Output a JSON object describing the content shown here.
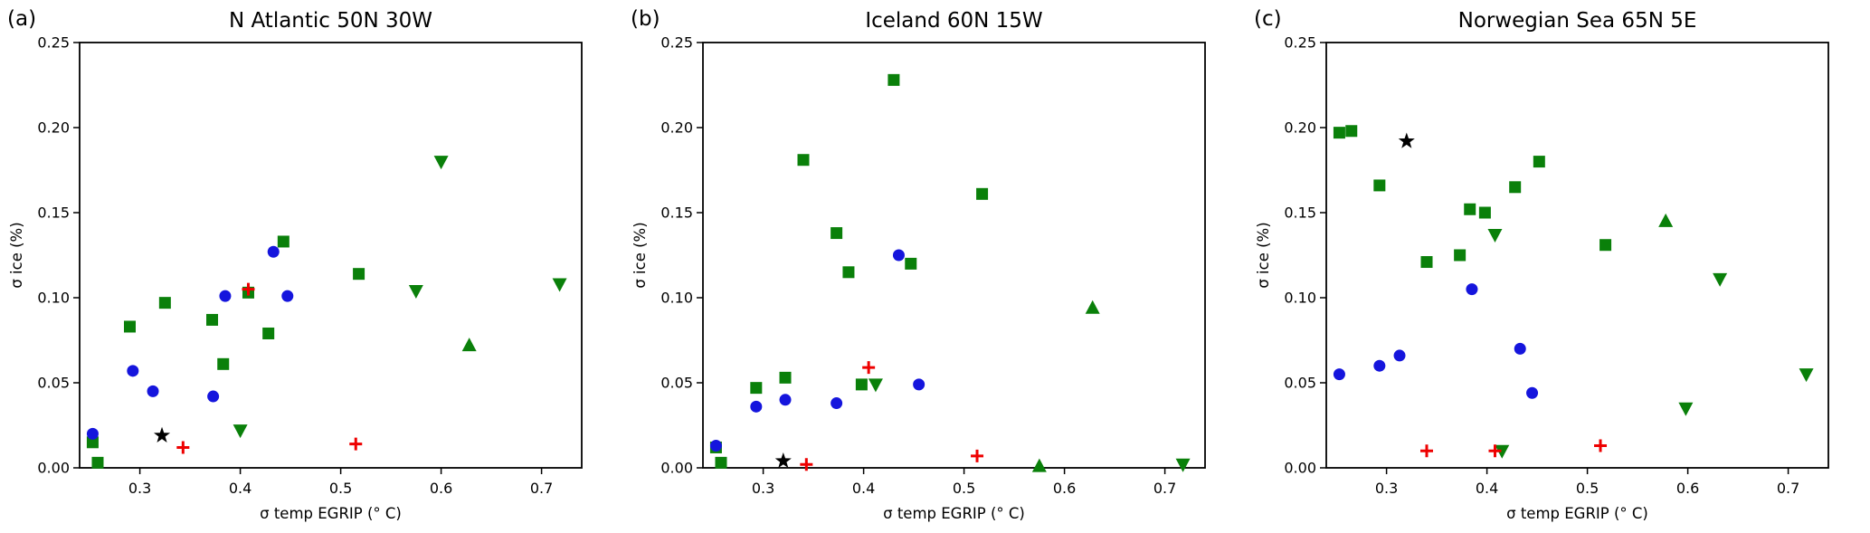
{
  "figure": {
    "background": "#ffffff"
  },
  "chart_data": [
    {
      "type": "scatter",
      "panel_label": "(a)",
      "title": "N Atlantic 50N 30W",
      "xlabel": "σ temp EGRIP (° C)",
      "ylabel": "σ ice (%)",
      "xlim": [
        0.24,
        0.74
      ],
      "ylim": [
        0,
        0.25
      ],
      "xticks": [
        0.3,
        0.4,
        0.5,
        0.6,
        0.7
      ],
      "xtick_labels": [
        "0.3",
        "0.4",
        "0.5",
        "0.6",
        "0.7"
      ],
      "yticks": [
        0.0,
        0.05,
        0.1,
        0.15,
        0.2,
        0.25
      ],
      "ytick_labels": [
        "0.00",
        "0.05",
        "0.10",
        "0.15",
        "0.20",
        "0.25"
      ],
      "grid": false,
      "legend": "none",
      "series": [
        {
          "name": "green-squares",
          "marker": "square",
          "color": "#0a800a",
          "points": [
            [
              0.253,
              0.015
            ],
            [
              0.258,
              0.003
            ],
            [
              0.29,
              0.083
            ],
            [
              0.325,
              0.097
            ],
            [
              0.372,
              0.087
            ],
            [
              0.383,
              0.061
            ],
            [
              0.408,
              0.103
            ],
            [
              0.428,
              0.079
            ],
            [
              0.443,
              0.133
            ],
            [
              0.518,
              0.114
            ]
          ]
        },
        {
          "name": "green-triangles-down",
          "marker": "triangle-down",
          "color": "#0a800a",
          "points": [
            [
              0.4,
              0.022
            ],
            [
              0.575,
              0.104
            ],
            [
              0.6,
              0.18
            ],
            [
              0.718,
              0.108
            ]
          ]
        },
        {
          "name": "green-triangles-up",
          "marker": "triangle-up",
          "color": "#0a800a",
          "points": [
            [
              0.628,
              0.072
            ]
          ]
        },
        {
          "name": "blue-circles",
          "marker": "circle",
          "color": "#1515dd",
          "points": [
            [
              0.253,
              0.02
            ],
            [
              0.293,
              0.057
            ],
            [
              0.313,
              0.045
            ],
            [
              0.373,
              0.042
            ],
            [
              0.385,
              0.101
            ],
            [
              0.433,
              0.127
            ],
            [
              0.447,
              0.101
            ]
          ]
        },
        {
          "name": "red-plus",
          "marker": "plus",
          "color": "#ee0000",
          "points": [
            [
              0.343,
              0.012
            ],
            [
              0.408,
              0.105
            ],
            [
              0.515,
              0.014
            ]
          ]
        },
        {
          "name": "black-star",
          "marker": "star",
          "color": "#000000",
          "points": [
            [
              0.322,
              0.019
            ]
          ]
        }
      ]
    },
    {
      "type": "scatter",
      "panel_label": "(b)",
      "title": "Iceland 60N 15W",
      "xlabel": "σ temp EGRIP (° C)",
      "ylabel": "σ ice (%)",
      "xlim": [
        0.24,
        0.74
      ],
      "ylim": [
        0,
        0.25
      ],
      "xticks": [
        0.3,
        0.4,
        0.5,
        0.6,
        0.7
      ],
      "xtick_labels": [
        "0.3",
        "0.4",
        "0.5",
        "0.6",
        "0.7"
      ],
      "yticks": [
        0.0,
        0.05,
        0.1,
        0.15,
        0.2,
        0.25
      ],
      "ytick_labels": [
        "0.00",
        "0.05",
        "0.10",
        "0.15",
        "0.20",
        "0.25"
      ],
      "grid": false,
      "legend": "none",
      "series": [
        {
          "name": "green-squares",
          "marker": "square",
          "color": "#0a800a",
          "points": [
            [
              0.253,
              0.012
            ],
            [
              0.258,
              0.003
            ],
            [
              0.293,
              0.047
            ],
            [
              0.322,
              0.053
            ],
            [
              0.34,
              0.181
            ],
            [
              0.373,
              0.138
            ],
            [
              0.385,
              0.115
            ],
            [
              0.398,
              0.049
            ],
            [
              0.43,
              0.228
            ],
            [
              0.447,
              0.12
            ],
            [
              0.518,
              0.161
            ]
          ]
        },
        {
          "name": "green-triangles-down",
          "marker": "triangle-down",
          "color": "#0a800a",
          "points": [
            [
              0.412,
              0.049
            ],
            [
              0.718,
              0.002
            ]
          ]
        },
        {
          "name": "green-triangles-up",
          "marker": "triangle-up",
          "color": "#0a800a",
          "points": [
            [
              0.575,
              0.001
            ],
            [
              0.628,
              0.094
            ]
          ]
        },
        {
          "name": "blue-circles",
          "marker": "circle",
          "color": "#1515dd",
          "points": [
            [
              0.253,
              0.013
            ],
            [
              0.293,
              0.036
            ],
            [
              0.322,
              0.04
            ],
            [
              0.373,
              0.038
            ],
            [
              0.435,
              0.125
            ],
            [
              0.455,
              0.049
            ]
          ]
        },
        {
          "name": "red-plus",
          "marker": "plus",
          "color": "#ee0000",
          "points": [
            [
              0.343,
              0.002
            ],
            [
              0.405,
              0.059
            ],
            [
              0.513,
              0.007
            ]
          ]
        },
        {
          "name": "black-star",
          "marker": "star",
          "color": "#000000",
          "points": [
            [
              0.32,
              0.004
            ]
          ]
        }
      ]
    },
    {
      "type": "scatter",
      "panel_label": "(c)",
      "title": "Norwegian Sea 65N 5E",
      "xlabel": "σ temp EGRIP (° C)",
      "ylabel": "σ ice (%)",
      "xlim": [
        0.24,
        0.74
      ],
      "ylim": [
        0,
        0.25
      ],
      "xticks": [
        0.3,
        0.4,
        0.5,
        0.6,
        0.7
      ],
      "xtick_labels": [
        "0.3",
        "0.4",
        "0.5",
        "0.6",
        "0.7"
      ],
      "yticks": [
        0.0,
        0.05,
        0.1,
        0.15,
        0.2,
        0.25
      ],
      "ytick_labels": [
        "0.00",
        "0.05",
        "0.10",
        "0.15",
        "0.20",
        "0.25"
      ],
      "grid": false,
      "legend": "none",
      "series": [
        {
          "name": "green-squares",
          "marker": "square",
          "color": "#0a800a",
          "points": [
            [
              0.253,
              0.197
            ],
            [
              0.265,
              0.198
            ],
            [
              0.293,
              0.166
            ],
            [
              0.34,
              0.121
            ],
            [
              0.373,
              0.125
            ],
            [
              0.383,
              0.152
            ],
            [
              0.398,
              0.15
            ],
            [
              0.428,
              0.165
            ],
            [
              0.452,
              0.18
            ],
            [
              0.518,
              0.131
            ]
          ]
        },
        {
          "name": "green-triangles-down",
          "marker": "triangle-down",
          "color": "#0a800a",
          "points": [
            [
              0.408,
              0.137
            ],
            [
              0.415,
              0.01
            ],
            [
              0.598,
              0.035
            ],
            [
              0.632,
              0.111
            ],
            [
              0.718,
              0.055
            ]
          ]
        },
        {
          "name": "green-triangles-up",
          "marker": "triangle-up",
          "color": "#0a800a",
          "points": [
            [
              0.578,
              0.145
            ]
          ]
        },
        {
          "name": "blue-circles",
          "marker": "circle",
          "color": "#1515dd",
          "points": [
            [
              0.253,
              0.055
            ],
            [
              0.293,
              0.06
            ],
            [
              0.313,
              0.066
            ],
            [
              0.385,
              0.105
            ],
            [
              0.433,
              0.07
            ],
            [
              0.445,
              0.044
            ]
          ]
        },
        {
          "name": "red-plus",
          "marker": "plus",
          "color": "#ee0000",
          "points": [
            [
              0.34,
              0.01
            ],
            [
              0.408,
              0.01
            ],
            [
              0.513,
              0.013
            ]
          ]
        },
        {
          "name": "black-star",
          "marker": "star",
          "color": "#000000",
          "points": [
            [
              0.32,
              0.192
            ]
          ]
        }
      ]
    }
  ]
}
